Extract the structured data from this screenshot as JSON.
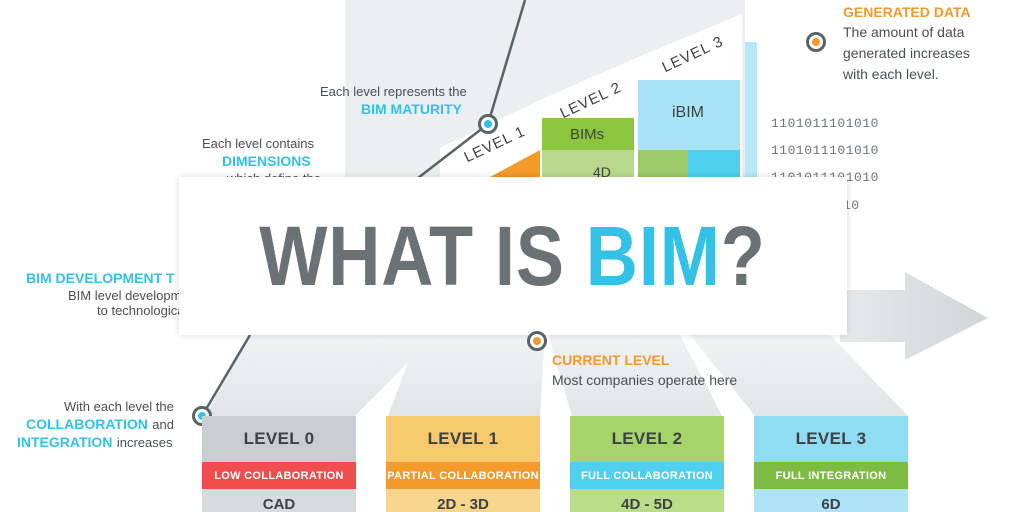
{
  "annotations": {
    "generated_data_title": "GENERATED DATA",
    "generated_data_line1": "The amount of data",
    "generated_data_line2": "generated increases",
    "generated_data_line3": "with each level.",
    "maturity_line1": "Each level represents the",
    "maturity_highlight": "BIM MATURITY",
    "dimensions_line1": "Each level contains",
    "dimensions_highlight": "DIMENSIONS",
    "dimensions_line2": "which define the",
    "trend_title": "BIM DEVELOPMENT T",
    "trend_line1": "BIM level developm",
    "trend_line2": "to technologica",
    "current_title": "CURRENT LEVEL",
    "current_text": "Most companies operate here",
    "collab_line1": "With each level the",
    "collab_highlight1": "COLLABORATION",
    "collab_and": "and",
    "collab_highlight2": "INTEGRATION",
    "collab_increases": "increases"
  },
  "staircase": {
    "level1_label": "LEVEL 1",
    "level2_label": "LEVEL 2",
    "level3_label": "LEVEL 3",
    "level2_text": "BIMs",
    "level2_sub": "4D",
    "level3_text": "iBIM"
  },
  "binary": [
    "1101011101010",
    "1101011101010",
    "1101011101010",
    "10"
  ],
  "banner": {
    "prefix": "WHAT IS ",
    "accent": "BIM",
    "suffix": "?"
  },
  "levels": [
    {
      "title": "LEVEL 0",
      "band": "LOW COLLABORATION",
      "bottom": "CAD",
      "top_color": "#c8cdcf",
      "band_color": "#f04e4e",
      "bottom_color": "#d8dbdc"
    },
    {
      "title": "LEVEL 1",
      "band": "PARTIAL COLLABORATION",
      "bottom": "2D - 3D",
      "top_color": "#f6c96a",
      "band_color": "#f39a2b",
      "bottom_color": "#f8d58c"
    },
    {
      "title": "LEVEL 2",
      "band": "FULL COLLABORATION",
      "bottom": "4D - 5D",
      "top_color": "#a6d46b",
      "band_color": "#4fd0ef",
      "bottom_color": "#b9dd8a"
    },
    {
      "title": "LEVEL 3",
      "band": "FULL INTEGRATION",
      "bottom": "6D",
      "top_color": "#8fdcf3",
      "band_color": "#7dbb42",
      "bottom_color": "#aee4f5"
    }
  ],
  "colors": {
    "accent_blue": "#35c0e6",
    "accent_orange": "#f39a2b",
    "title_gray": "#6a7275"
  }
}
